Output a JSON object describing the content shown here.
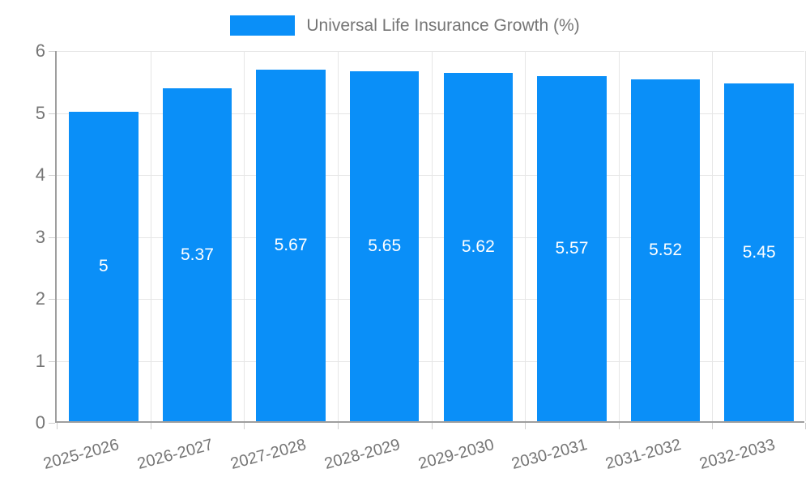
{
  "legend": {
    "label": "Universal Life Insurance Growth (%)"
  },
  "chart_data": {
    "type": "bar",
    "title": "Universal Life Insurance Growth (%)",
    "categories": [
      "2025-2026",
      "2026-2027",
      "2027-2028",
      "2028-2029",
      "2029-2030",
      "2030-2031",
      "2031-2032",
      "2032-2033"
    ],
    "values": [
      5,
      5.37,
      5.67,
      5.65,
      5.62,
      5.57,
      5.52,
      5.45
    ],
    "value_labels": [
      "5",
      "5.37",
      "5.67",
      "5.65",
      "5.62",
      "5.57",
      "5.52",
      "5.45"
    ],
    "xlabel": "",
    "ylabel": "",
    "ylim": [
      0,
      6
    ],
    "yticks": [
      0,
      1,
      2,
      3,
      4,
      5,
      6
    ],
    "grid": true,
    "legend_position": "top",
    "bar_color": "#0A8FF8",
    "bar_label_color": "#ffffff",
    "gridline_color": "#e6e6e6",
    "axis_color": "#9e9e9e",
    "tick_text_color": "#757575"
  }
}
